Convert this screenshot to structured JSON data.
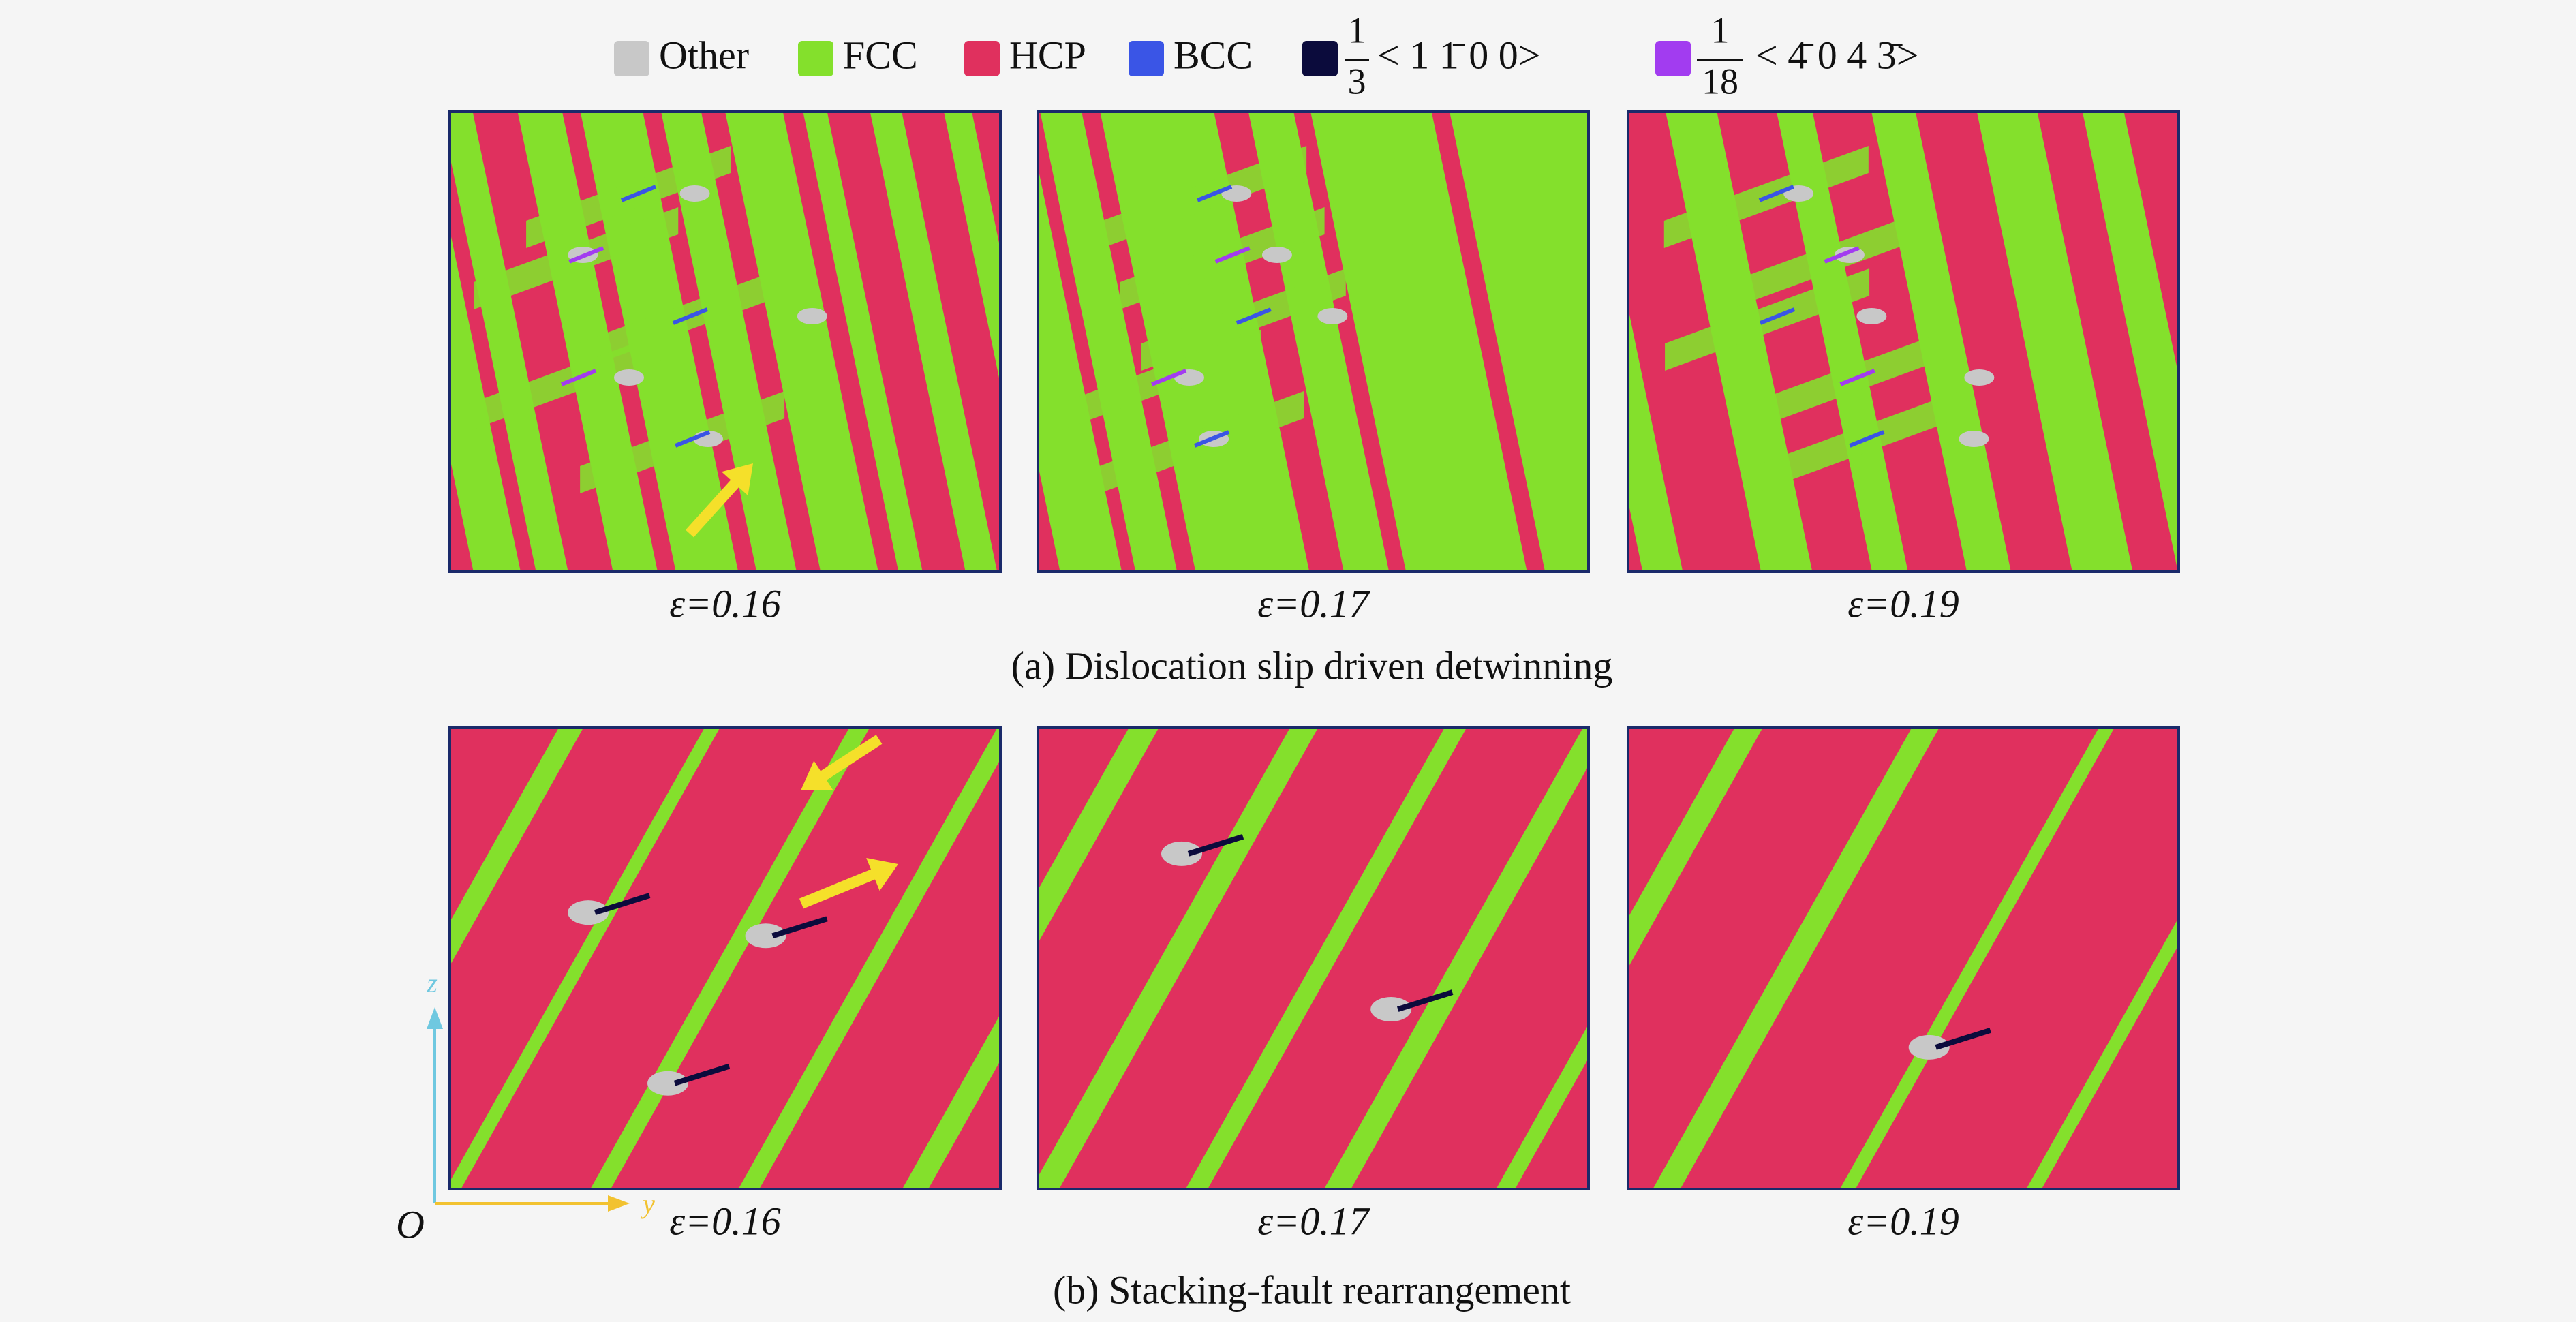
{
  "legend": [
    {
      "label": "Other",
      "color": "#c8c8c8"
    },
    {
      "label": "FCC",
      "color": "#84e02c"
    },
    {
      "label": "HCP",
      "color": "#e0305e"
    },
    {
      "label": "BCC",
      "color": "#3a55e6"
    },
    {
      "numerator": "1",
      "denominator": "3",
      "label": "< 1 1̄ 0 0>",
      "color": "#0b0b3c"
    },
    {
      "numerator": "1",
      "denominator": "18",
      "label": "< 4̄ 0 4 3̄>",
      "color": "#a23cf0"
    }
  ],
  "panels": {
    "a": {
      "strains": [
        "ε=0.16",
        "ε=0.17",
        "ε=0.19"
      ],
      "caption": "(a) Dislocation slip driven detwinning"
    },
    "b": {
      "strains": [
        "ε=0.16",
        "ε=0.17",
        "ε=0.19"
      ],
      "caption": "(b) Stacking-fault rearrangement"
    }
  },
  "axes": {
    "z": "z",
    "y": "y",
    "origin": "O"
  }
}
